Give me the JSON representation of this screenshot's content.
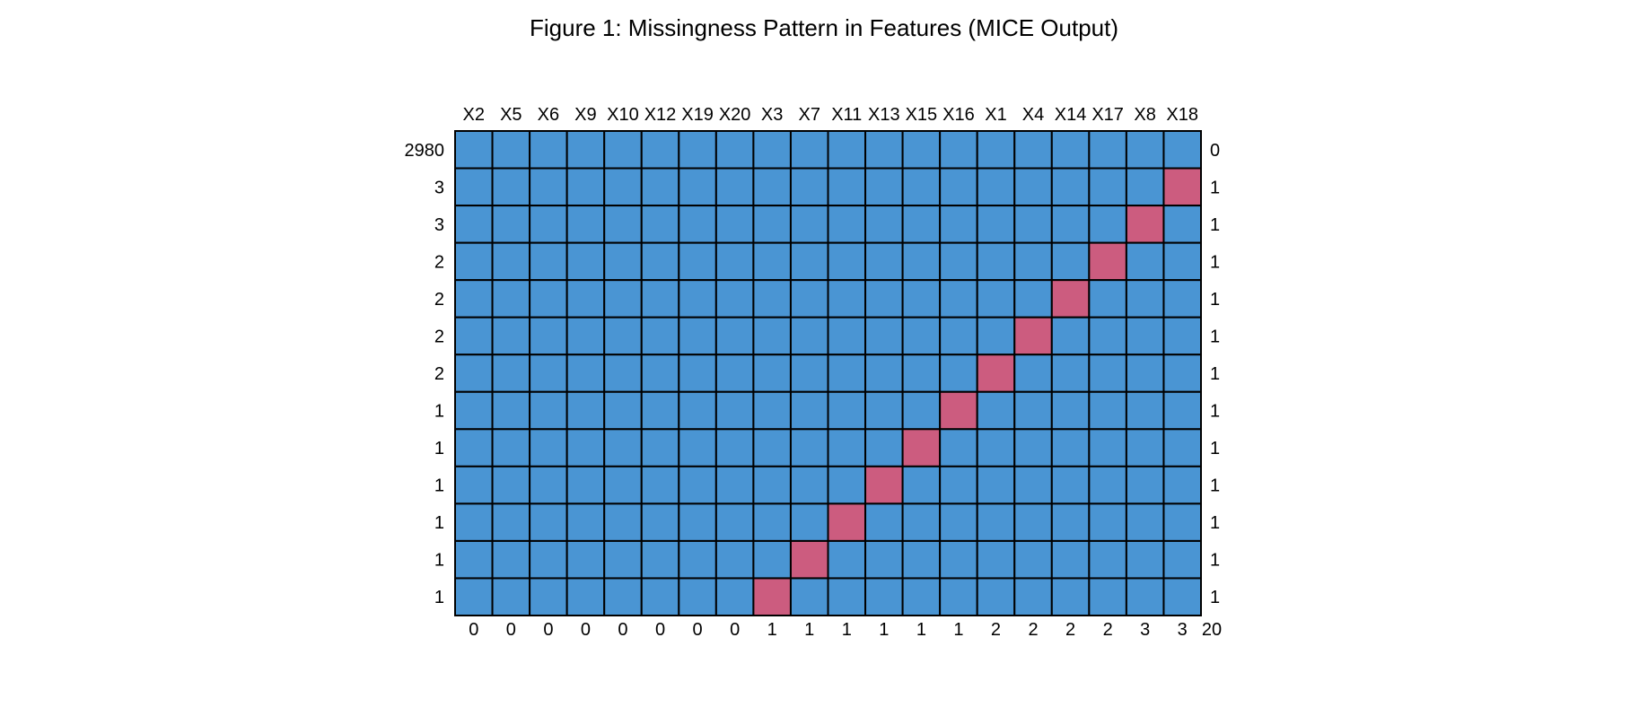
{
  "chart_data": {
    "type": "heatmap",
    "title": "Figure 1: Missingness Pattern in Features (MICE Output)",
    "columns": [
      "X2",
      "X5",
      "X6",
      "X9",
      "X10",
      "X12",
      "X19",
      "X20",
      "X3",
      "X7",
      "X11",
      "X13",
      "X15",
      "X16",
      "X1",
      "X4",
      "X14",
      "X17",
      "X8",
      "X18"
    ],
    "pattern_counts": [
      "2980",
      "3",
      "3",
      "2",
      "2",
      "2",
      "2",
      "1",
      "1",
      "1",
      "1",
      "1",
      "1"
    ],
    "missing_per_pattern": [
      "0",
      "1",
      "1",
      "1",
      "1",
      "1",
      "1",
      "1",
      "1",
      "1",
      "1",
      "1",
      "1"
    ],
    "missing_per_variable": [
      "0",
      "0",
      "0",
      "0",
      "0",
      "0",
      "0",
      "0",
      "1",
      "1",
      "1",
      "1",
      "1",
      "1",
      "2",
      "2",
      "2",
      "2",
      "3",
      "3"
    ],
    "total_missing": "20",
    "missing_cells": [
      {
        "row": 1,
        "column": "X18"
      },
      {
        "row": 2,
        "column": "X8"
      },
      {
        "row": 3,
        "column": "X17"
      },
      {
        "row": 4,
        "column": "X14"
      },
      {
        "row": 5,
        "column": "X4"
      },
      {
        "row": 6,
        "column": "X1"
      },
      {
        "row": 7,
        "column": "X16"
      },
      {
        "row": 8,
        "column": "X15"
      },
      {
        "row": 9,
        "column": "X13"
      },
      {
        "row": 10,
        "column": "X11"
      },
      {
        "row": 11,
        "column": "X7"
      },
      {
        "row": 12,
        "column": "X3"
      }
    ],
    "colors": {
      "observed": "#4a95d3",
      "missing": "#cc5c7f",
      "grid": "#000000"
    },
    "legend": "none"
  }
}
